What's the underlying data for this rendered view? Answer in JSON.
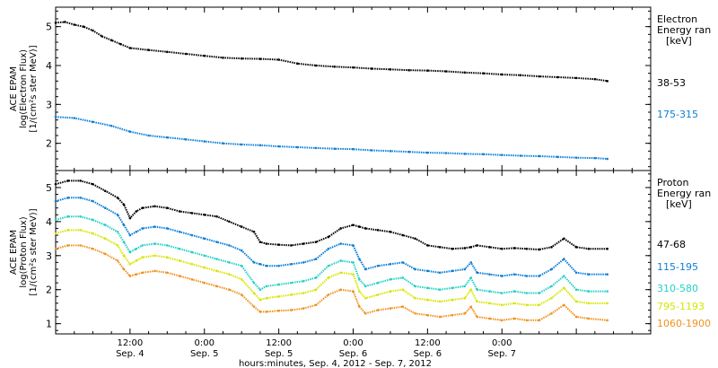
{
  "chart_data": [
    {
      "type": "line",
      "ylabel_lines": [
        "ACE EPAM",
        "log(Electron Flux)",
        "[1/(cm²s ster MeV)]"
      ],
      "ylim": [
        1.3,
        5.5
      ],
      "yticks": [
        2,
        3,
        4,
        5
      ],
      "x_range_hours": [
        0,
        96
      ],
      "legend": {
        "title_lines": [
          "Electron",
          "Energy ran",
          "[keV]"
        ]
      },
      "series": [
        {
          "name": "38-53",
          "color": "#000000",
          "x": [
            0,
            1.5,
            3,
            4.5,
            6,
            7.5,
            9,
            10.5,
            12,
            15,
            18,
            21,
            24,
            27,
            30,
            33,
            36,
            39,
            42,
            45,
            48,
            51,
            54,
            57,
            60,
            63,
            66,
            69,
            72,
            75,
            78,
            81,
            84,
            87,
            89
          ],
          "y": [
            5.1,
            5.12,
            5.05,
            5.0,
            4.9,
            4.75,
            4.65,
            4.55,
            4.45,
            4.4,
            4.35,
            4.3,
            4.25,
            4.2,
            4.18,
            4.17,
            4.15,
            4.05,
            4.0,
            3.97,
            3.95,
            3.92,
            3.9,
            3.88,
            3.87,
            3.85,
            3.82,
            3.8,
            3.77,
            3.75,
            3.72,
            3.7,
            3.68,
            3.65,
            3.6
          ]
        },
        {
          "name": "175-315",
          "color": "#0b7fd6",
          "x": [
            0,
            3,
            6,
            9,
            12,
            15,
            18,
            21,
            24,
            27,
            30,
            33,
            36,
            39,
            42,
            45,
            48,
            51,
            54,
            57,
            60,
            63,
            66,
            69,
            72,
            75,
            78,
            81,
            84,
            87,
            89
          ],
          "y": [
            2.68,
            2.65,
            2.55,
            2.45,
            2.3,
            2.2,
            2.15,
            2.1,
            2.05,
            2.0,
            1.97,
            1.95,
            1.92,
            1.9,
            1.88,
            1.86,
            1.85,
            1.82,
            1.8,
            1.78,
            1.76,
            1.75,
            1.73,
            1.72,
            1.7,
            1.68,
            1.67,
            1.65,
            1.63,
            1.62,
            1.6
          ]
        }
      ]
    },
    {
      "type": "line",
      "ylabel_lines": [
        "ACE EPAM",
        "log(Proton Flux)",
        "[1/(cm²s ster MeV)]"
      ],
      "ylim": [
        0.7,
        5.5
      ],
      "yticks": [
        1,
        2,
        3,
        4,
        5
      ],
      "x_range_hours": [
        0,
        96
      ],
      "xlabel": "hours:minutes, Sep.  4, 2012 - Sep.  7, 2012",
      "x_ticks": [
        {
          "hour": 12,
          "time": "12:00",
          "date": "Sep. 4"
        },
        {
          "hour": 24,
          "time": "0:00",
          "date": "Sep. 5"
        },
        {
          "hour": 36,
          "time": "12:00",
          "date": "Sep. 5"
        },
        {
          "hour": 48,
          "time": "0:00",
          "date": "Sep. 6"
        },
        {
          "hour": 60,
          "time": "12:00",
          "date": "Sep. 6"
        },
        {
          "hour": 72,
          "time": "0:00",
          "date": "Sep. 7"
        }
      ],
      "legend": {
        "title_lines": [
          "Proton",
          "Energy ran",
          "[keV]"
        ]
      },
      "series": [
        {
          "name": "47-68",
          "color": "#000000",
          "x": [
            0,
            2,
            4,
            6,
            8,
            10,
            11,
            12,
            13,
            14,
            16,
            18,
            20,
            22,
            24,
            26,
            28,
            30,
            32,
            33,
            34,
            36,
            38,
            40,
            42,
            44,
            46,
            48,
            49,
            50,
            52,
            54,
            56,
            58,
            60,
            62,
            64,
            66,
            67,
            68,
            70,
            72,
            74,
            76,
            78,
            80,
            82,
            84,
            86,
            89
          ],
          "y": [
            5.1,
            5.2,
            5.2,
            5.1,
            4.9,
            4.7,
            4.5,
            4.1,
            4.3,
            4.4,
            4.45,
            4.4,
            4.3,
            4.25,
            4.2,
            4.15,
            4.0,
            3.85,
            3.7,
            3.4,
            3.35,
            3.32,
            3.3,
            3.35,
            3.4,
            3.55,
            3.8,
            3.9,
            3.85,
            3.8,
            3.75,
            3.7,
            3.6,
            3.5,
            3.3,
            3.25,
            3.2,
            3.22,
            3.25,
            3.3,
            3.25,
            3.2,
            3.22,
            3.2,
            3.18,
            3.25,
            3.5,
            3.25,
            3.2,
            3.2
          ]
        },
        {
          "name": "115-195",
          "color": "#0b7fd6",
          "x": [
            0,
            2,
            4,
            6,
            8,
            10,
            11,
            12,
            13,
            14,
            16,
            18,
            20,
            22,
            24,
            26,
            28,
            30,
            32,
            33,
            34,
            36,
            38,
            40,
            42,
            44,
            46,
            48,
            49,
            50,
            52,
            54,
            56,
            58,
            60,
            62,
            64,
            66,
            67,
            68,
            70,
            72,
            74,
            76,
            78,
            80,
            82,
            84,
            86,
            89
          ],
          "y": [
            4.6,
            4.7,
            4.7,
            4.6,
            4.4,
            4.2,
            3.9,
            3.6,
            3.7,
            3.8,
            3.85,
            3.8,
            3.7,
            3.6,
            3.5,
            3.4,
            3.3,
            3.15,
            2.8,
            2.75,
            2.7,
            2.7,
            2.75,
            2.8,
            2.9,
            3.2,
            3.35,
            3.3,
            2.9,
            2.6,
            2.7,
            2.75,
            2.8,
            2.6,
            2.55,
            2.5,
            2.55,
            2.6,
            2.8,
            2.5,
            2.45,
            2.4,
            2.45,
            2.4,
            2.4,
            2.6,
            2.9,
            2.5,
            2.45,
            2.45
          ]
        },
        {
          "name": "310-580",
          "color": "#23d1c4",
          "x": [
            0,
            2,
            4,
            6,
            8,
            10,
            11,
            12,
            13,
            14,
            16,
            18,
            20,
            22,
            24,
            26,
            28,
            30,
            32,
            33,
            34,
            36,
            38,
            40,
            42,
            44,
            46,
            48,
            49,
            50,
            52,
            54,
            56,
            58,
            60,
            62,
            64,
            66,
            67,
            68,
            70,
            72,
            74,
            76,
            78,
            80,
            82,
            84,
            86,
            89
          ],
          "y": [
            4.05,
            4.15,
            4.15,
            4.05,
            3.9,
            3.7,
            3.4,
            3.1,
            3.2,
            3.3,
            3.35,
            3.3,
            3.2,
            3.1,
            3.0,
            2.9,
            2.8,
            2.7,
            2.2,
            2.0,
            2.1,
            2.15,
            2.2,
            2.25,
            2.35,
            2.7,
            2.85,
            2.8,
            2.3,
            2.1,
            2.2,
            2.3,
            2.35,
            2.1,
            2.05,
            2.0,
            2.05,
            2.1,
            2.35,
            2.0,
            1.95,
            1.9,
            1.95,
            1.9,
            1.9,
            2.1,
            2.4,
            2.0,
            1.95,
            1.95
          ]
        },
        {
          "name": "795-1193",
          "color": "#d6e600",
          "x": [
            0,
            2,
            4,
            6,
            8,
            10,
            11,
            12,
            13,
            14,
            16,
            18,
            20,
            22,
            24,
            26,
            28,
            30,
            32,
            33,
            34,
            36,
            38,
            40,
            42,
            44,
            46,
            48,
            49,
            50,
            52,
            54,
            56,
            58,
            60,
            62,
            64,
            66,
            67,
            68,
            70,
            72,
            74,
            76,
            78,
            80,
            82,
            84,
            86,
            89
          ],
          "y": [
            3.65,
            3.75,
            3.75,
            3.65,
            3.5,
            3.3,
            3.0,
            2.75,
            2.85,
            2.95,
            3.0,
            2.95,
            2.85,
            2.75,
            2.65,
            2.55,
            2.45,
            2.3,
            1.9,
            1.7,
            1.75,
            1.8,
            1.85,
            1.9,
            2.0,
            2.35,
            2.5,
            2.45,
            1.95,
            1.75,
            1.85,
            1.95,
            2.0,
            1.75,
            1.7,
            1.65,
            1.7,
            1.75,
            2.0,
            1.65,
            1.6,
            1.55,
            1.6,
            1.55,
            1.55,
            1.75,
            2.05,
            1.65,
            1.6,
            1.6
          ]
        },
        {
          "name": "1060-1900",
          "color": "#f0921e",
          "x": [
            0,
            2,
            4,
            6,
            8,
            10,
            11,
            12,
            13,
            14,
            16,
            18,
            20,
            22,
            24,
            26,
            28,
            30,
            32,
            33,
            34,
            36,
            38,
            40,
            42,
            44,
            46,
            48,
            49,
            50,
            52,
            54,
            56,
            58,
            60,
            62,
            64,
            66,
            67,
            68,
            70,
            72,
            74,
            76,
            78,
            80,
            82,
            84,
            86,
            89
          ],
          "y": [
            3.2,
            3.3,
            3.3,
            3.2,
            3.05,
            2.85,
            2.6,
            2.4,
            2.45,
            2.5,
            2.55,
            2.5,
            2.4,
            2.3,
            2.2,
            2.1,
            2.0,
            1.85,
            1.5,
            1.35,
            1.35,
            1.38,
            1.4,
            1.45,
            1.55,
            1.85,
            2.0,
            1.95,
            1.5,
            1.3,
            1.4,
            1.45,
            1.5,
            1.3,
            1.25,
            1.2,
            1.25,
            1.3,
            1.5,
            1.2,
            1.15,
            1.1,
            1.15,
            1.1,
            1.1,
            1.3,
            1.55,
            1.2,
            1.15,
            1.1
          ]
        }
      ]
    }
  ]
}
